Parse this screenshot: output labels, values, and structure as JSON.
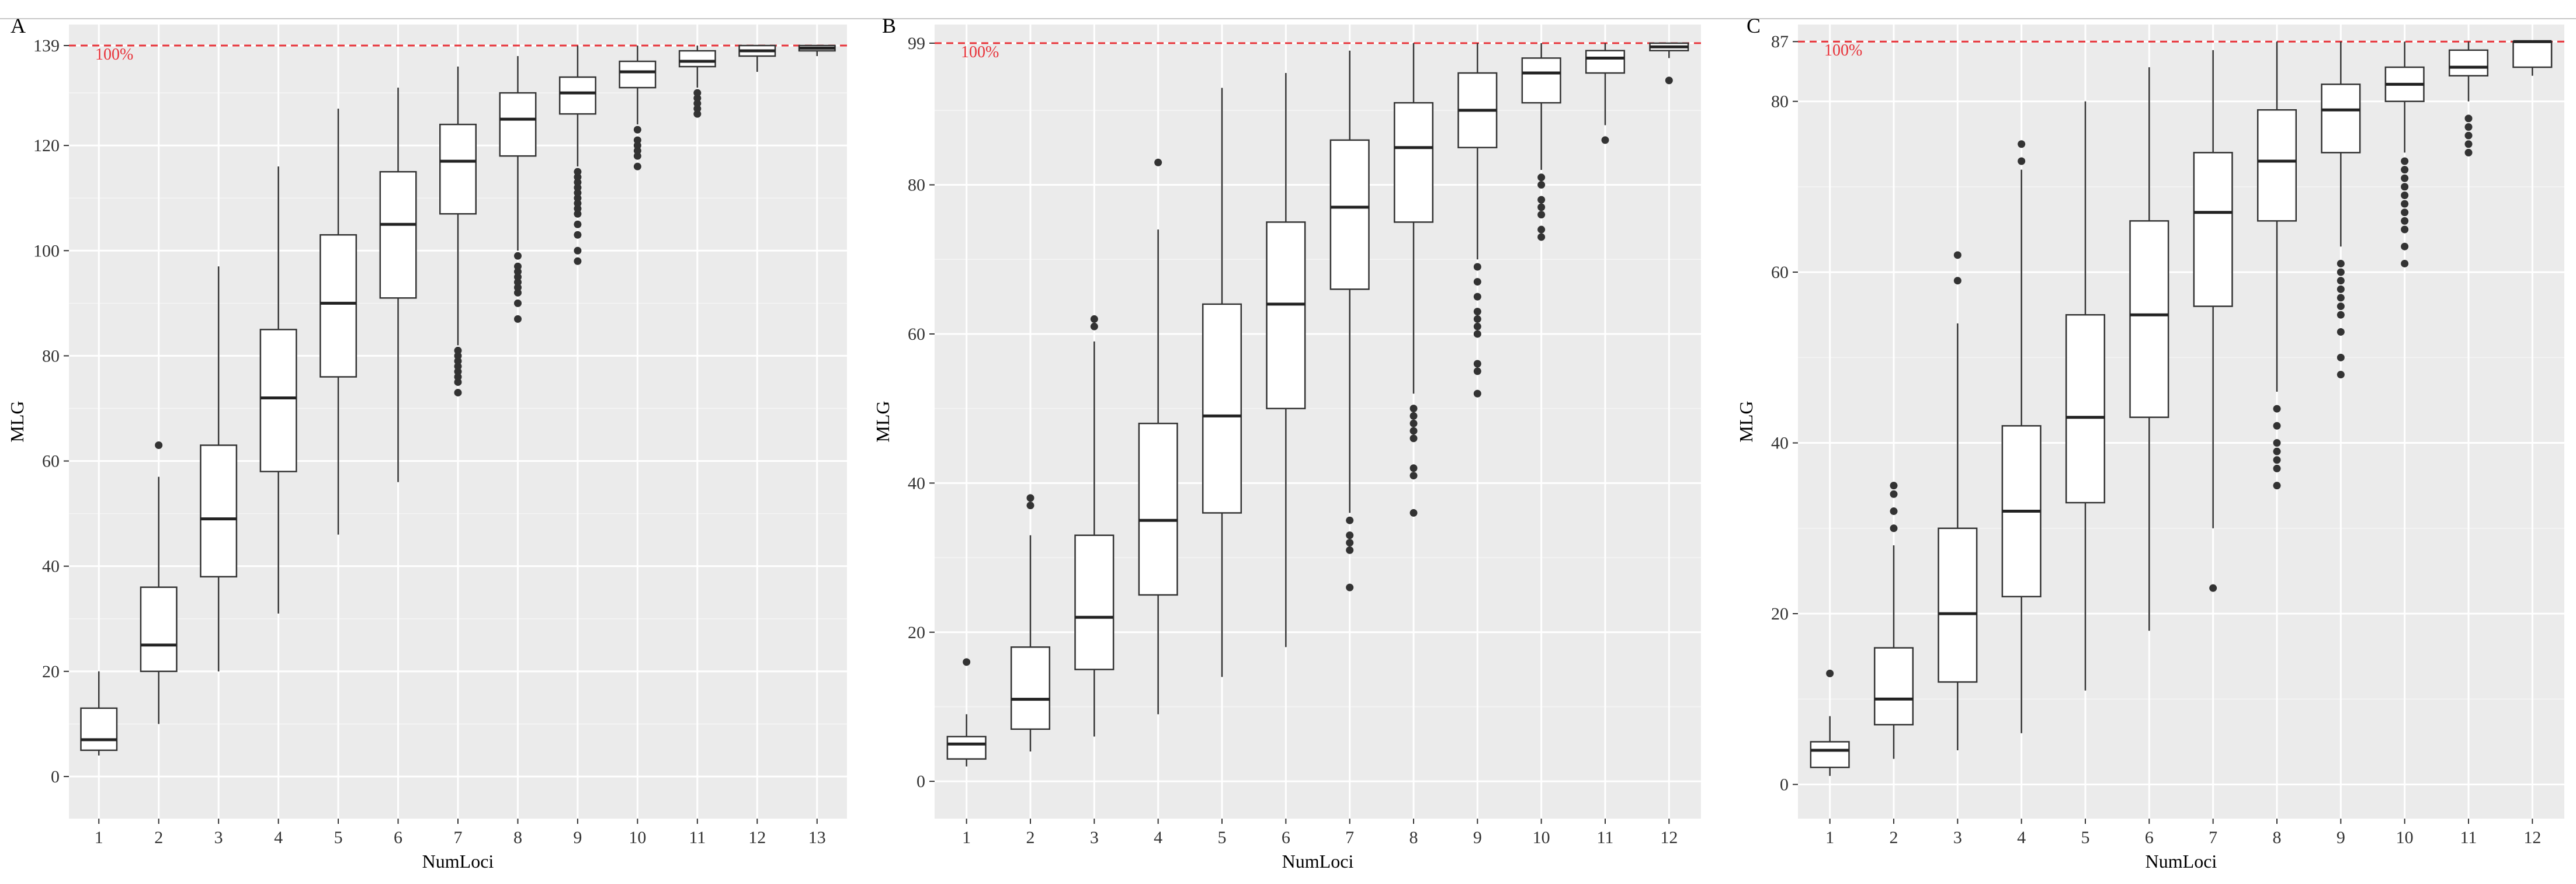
{
  "chart_data": [
    {
      "panel": "A",
      "type": "box",
      "xlabel": "NumLoci",
      "ylabel": "MLG",
      "categories": [
        "1",
        "2",
        "3",
        "4",
        "5",
        "6",
        "7",
        "8",
        "9",
        "10",
        "11",
        "12",
        "13"
      ],
      "ylim": [
        -8,
        143
      ],
      "yticks": [
        0,
        20,
        40,
        60,
        80,
        100,
        120,
        139
      ],
      "ytick_labels": [
        "0",
        "20",
        "40",
        "60",
        "80",
        "100",
        "120",
        "139"
      ],
      "reference_line": {
        "value": 139,
        "label": "100%",
        "color": "#e8333a"
      },
      "grid": true,
      "boxes": [
        {
          "q1": 5,
          "median": 7,
          "q3": 13,
          "low": 4,
          "high": 20,
          "outliers": []
        },
        {
          "q1": 20,
          "median": 25,
          "q3": 36,
          "low": 10,
          "high": 57,
          "outliers": [
            63
          ]
        },
        {
          "q1": 38,
          "median": 49,
          "q3": 63,
          "low": 20,
          "high": 97,
          "outliers": []
        },
        {
          "q1": 58,
          "median": 72,
          "q3": 85,
          "low": 31,
          "high": 116,
          "outliers": []
        },
        {
          "q1": 76,
          "median": 90,
          "q3": 103,
          "low": 46,
          "high": 127,
          "outliers": []
        },
        {
          "q1": 91,
          "median": 105,
          "q3": 115,
          "low": 56,
          "high": 131,
          "outliers": []
        },
        {
          "q1": 107,
          "median": 117,
          "q3": 124,
          "low": 82,
          "high": 135,
          "outliers": [
            73,
            75,
            76,
            77,
            78,
            79,
            80,
            81
          ]
        },
        {
          "q1": 118,
          "median": 125,
          "q3": 130,
          "low": 100,
          "high": 137,
          "outliers": [
            87,
            90,
            92,
            93,
            94,
            95,
            96,
            97,
            99
          ]
        },
        {
          "q1": 126,
          "median": 130,
          "q3": 133,
          "low": 116,
          "high": 139,
          "outliers": [
            98,
            100,
            103,
            105,
            107,
            108,
            109,
            110,
            111,
            112,
            113,
            114,
            115
          ]
        },
        {
          "q1": 131,
          "median": 134,
          "q3": 136,
          "low": 124,
          "high": 139,
          "outliers": [
            116,
            118,
            119,
            120,
            121,
            123
          ]
        },
        {
          "q1": 135,
          "median": 136,
          "q3": 138,
          "low": 131,
          "high": 139,
          "outliers": [
            126,
            127,
            128,
            129,
            130
          ]
        },
        {
          "q1": 137,
          "median": 138,
          "q3": 139,
          "low": 134,
          "high": 139,
          "outliers": []
        },
        {
          "q1": 138,
          "median": 138.5,
          "q3": 139,
          "low": 137,
          "high": 139,
          "outliers": []
        }
      ]
    },
    {
      "panel": "B",
      "type": "box",
      "xlabel": "NumLoci",
      "ylabel": "MLG",
      "categories": [
        "1",
        "2",
        "3",
        "4",
        "5",
        "6",
        "7",
        "8",
        "9",
        "10",
        "11",
        "12"
      ],
      "ylim": [
        -5,
        101.5
      ],
      "yticks": [
        0,
        20,
        40,
        60,
        80,
        99
      ],
      "ytick_labels": [
        "0",
        "20",
        "40",
        "60",
        "80",
        "99"
      ],
      "reference_line": {
        "value": 99,
        "label": "100%",
        "color": "#e8333a"
      },
      "grid": true,
      "boxes": [
        {
          "q1": 3,
          "median": 5,
          "q3": 6,
          "low": 2,
          "high": 9,
          "outliers": [
            16
          ]
        },
        {
          "q1": 7,
          "median": 11,
          "q3": 18,
          "low": 4,
          "high": 33,
          "outliers": [
            37,
            38
          ]
        },
        {
          "q1": 15,
          "median": 22,
          "q3": 33,
          "low": 6,
          "high": 59,
          "outliers": [
            61,
            62
          ]
        },
        {
          "q1": 25,
          "median": 35,
          "q3": 48,
          "low": 9,
          "high": 74,
          "outliers": [
            83
          ]
        },
        {
          "q1": 36,
          "median": 49,
          "q3": 64,
          "low": 14,
          "high": 93,
          "outliers": []
        },
        {
          "q1": 50,
          "median": 64,
          "q3": 75,
          "low": 18,
          "high": 95,
          "outliers": []
        },
        {
          "q1": 66,
          "median": 77,
          "q3": 86,
          "low": 36,
          "high": 98,
          "outliers": [
            26,
            31,
            32,
            33,
            35
          ]
        },
        {
          "q1": 75,
          "median": 85,
          "q3": 91,
          "low": 52,
          "high": 99,
          "outliers": [
            36,
            41,
            42,
            46,
            47,
            48,
            49,
            50
          ]
        },
        {
          "q1": 85,
          "median": 90,
          "q3": 95,
          "low": 70,
          "high": 99,
          "outliers": [
            52,
            55,
            56,
            60,
            61,
            62,
            63,
            65,
            67,
            69
          ]
        },
        {
          "q1": 91,
          "median": 95,
          "q3": 97,
          "low": 82,
          "high": 99,
          "outliers": [
            73,
            74,
            76,
            77,
            78,
            80,
            81
          ]
        },
        {
          "q1": 95,
          "median": 97,
          "q3": 98,
          "low": 88,
          "high": 99,
          "outliers": [
            86
          ]
        },
        {
          "q1": 98,
          "median": 98.5,
          "q3": 99,
          "low": 97,
          "high": 99,
          "outliers": [
            94
          ]
        }
      ]
    },
    {
      "panel": "C",
      "type": "box",
      "xlabel": "NumLoci",
      "ylabel": "MLG",
      "categories": [
        "1",
        "2",
        "3",
        "4",
        "5",
        "6",
        "7",
        "8",
        "9",
        "10",
        "11",
        "12"
      ],
      "ylim": [
        -4,
        89
      ],
      "yticks": [
        0,
        20,
        40,
        60,
        80,
        87
      ],
      "ytick_labels": [
        "0",
        "20",
        "40",
        "60",
        "80",
        "87"
      ],
      "reference_line": {
        "value": 87,
        "label": "100%",
        "color": "#e8333a"
      },
      "grid": true,
      "boxes": [
        {
          "q1": 2,
          "median": 4,
          "q3": 5,
          "low": 1,
          "high": 8,
          "outliers": [
            13
          ]
        },
        {
          "q1": 7,
          "median": 10,
          "q3": 16,
          "low": 3,
          "high": 28,
          "outliers": [
            30,
            32,
            34,
            35
          ]
        },
        {
          "q1": 12,
          "median": 20,
          "q3": 30,
          "low": 4,
          "high": 54,
          "outliers": [
            59,
            62
          ]
        },
        {
          "q1": 22,
          "median": 32,
          "q3": 42,
          "low": 6,
          "high": 72,
          "outliers": [
            73,
            75
          ]
        },
        {
          "q1": 33,
          "median": 43,
          "q3": 55,
          "low": 11,
          "high": 80,
          "outliers": []
        },
        {
          "q1": 43,
          "median": 55,
          "q3": 66,
          "low": 18,
          "high": 84,
          "outliers": []
        },
        {
          "q1": 56,
          "median": 67,
          "q3": 74,
          "low": 30,
          "high": 86,
          "outliers": [
            23
          ]
        },
        {
          "q1": 66,
          "median": 73,
          "q3": 79,
          "low": 46,
          "high": 87,
          "outliers": [
            35,
            37,
            38,
            39,
            40,
            42,
            44
          ]
        },
        {
          "q1": 74,
          "median": 79,
          "q3": 82,
          "low": 63,
          "high": 87,
          "outliers": [
            48,
            50,
            53,
            55,
            56,
            57,
            58,
            59,
            60,
            61
          ]
        },
        {
          "q1": 80,
          "median": 82,
          "q3": 84,
          "low": 74,
          "high": 87,
          "outliers": [
            61,
            63,
            65,
            66,
            67,
            68,
            69,
            70,
            71,
            72,
            73
          ]
        },
        {
          "q1": 83,
          "median": 84,
          "q3": 86,
          "low": 80,
          "high": 87,
          "outliers": [
            74,
            75,
            76,
            77,
            78
          ]
        },
        {
          "q1": 84,
          "median": 87,
          "q3": 87,
          "low": 83,
          "high": 87,
          "outliers": []
        }
      ]
    }
  ]
}
